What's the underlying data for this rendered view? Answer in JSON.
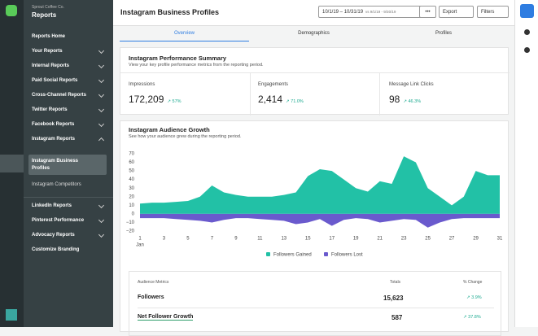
{
  "sidebar": {
    "org": "Sprout Coffee Co.",
    "title": "Reports",
    "items": [
      "Reports Home",
      "Your Reports",
      "Internal Reports",
      "Paid Social Reports",
      "Cross-Channel Reports",
      "Twitter Reports",
      "Facebook Reports",
      "Instagram Reports",
      "Instagram Business Profiles",
      "Instagram Competitors",
      "LinkedIn Reports",
      "Pinterest Performance",
      "Advocacy Reports",
      "Customize Branding"
    ]
  },
  "header": {
    "title": "Instagram Business Profiles",
    "date_range": "10/1/19 – 10/31/19",
    "compare_range": "vs 9/1/19 - 9/30/19",
    "export": "Export",
    "filters": "Filters"
  },
  "tabs": [
    "Overview",
    "Demographics",
    "Profiles"
  ],
  "summary": {
    "title": "Instagram Performance Summary",
    "subtitle": "View your key profile performance metrics from the reporting period.",
    "metrics": [
      {
        "label": "Impressions",
        "value": "172,209",
        "change": "57%"
      },
      {
        "label": "Engagements",
        "value": "2,414",
        "change": "71.0%"
      },
      {
        "label": "Message Link Clicks",
        "value": "98",
        "change": "46.3%"
      }
    ]
  },
  "growth": {
    "title": "Instagram Audience Growth",
    "subtitle": "See how your audience grew during the reporting period.",
    "chart": {
      "type": "area",
      "x": [
        1,
        2,
        3,
        4,
        5,
        6,
        7,
        8,
        9,
        10,
        11,
        12,
        13,
        14,
        15,
        16,
        17,
        18,
        19,
        20,
        21,
        22,
        23,
        24,
        25,
        26,
        27,
        28,
        29,
        30,
        31
      ],
      "xlim": [
        1,
        31
      ],
      "xticks": [
        1,
        3,
        5,
        7,
        9,
        11,
        13,
        15,
        17,
        19,
        21,
        23,
        25,
        27,
        29,
        31
      ],
      "x_sublabel": "Jan",
      "ylim": [
        -20,
        70
      ],
      "yticks": [
        70,
        60,
        50,
        40,
        30,
        20,
        10,
        0,
        {
          "value": -10,
          "label": "−10"
        },
        {
          "value": -20,
          "label": "−20"
        }
      ],
      "series": [
        {
          "name": "Followers Gained",
          "color": "#22c1a6",
          "values": [
            12,
            13,
            13,
            14,
            15,
            20,
            33,
            25,
            22,
            20,
            20,
            20,
            22,
            25,
            44,
            52,
            50,
            40,
            30,
            26,
            38,
            35,
            67,
            60,
            30,
            20,
            10,
            20,
            50,
            45,
            45
          ]
        },
        {
          "name": "Followers Lost",
          "color": "#6a5acd",
          "values": [
            -5,
            -5,
            -5,
            -6,
            -7,
            -8,
            -10,
            -7,
            -5,
            -5,
            -6,
            -7,
            -8,
            -12,
            -10,
            -6,
            -14,
            -7,
            -5,
            -6,
            -10,
            -8,
            -6,
            -7,
            -16,
            -10,
            -6,
            -5,
            -5,
            -5,
            -5
          ]
        }
      ]
    },
    "table": {
      "headers": [
        "Audience Metrics",
        "Totals",
        "% Change"
      ],
      "rows": [
        [
          "Followers",
          "15,623",
          "3.9%"
        ],
        [
          "Net Follower Growth",
          "587",
          "37.8%"
        ]
      ]
    }
  }
}
